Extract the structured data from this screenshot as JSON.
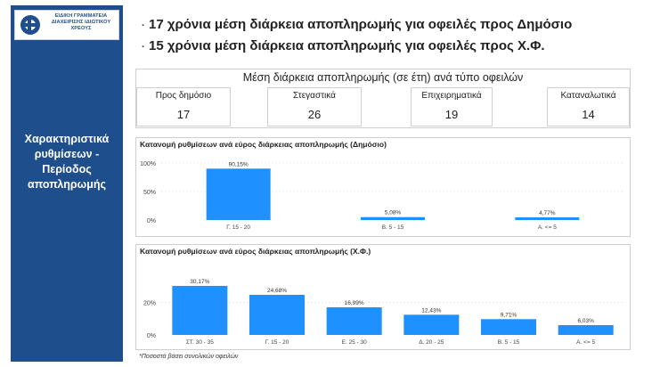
{
  "logo": {
    "text": "ΕΙΔΙΚΗ ΓΡΑΜΜΑΤΕΙΑ ΔΙΑΧΕΙΡΙΣΗΣ ΙΔΙΩΤΙΚΟΥ ΧΡΕΟΥΣ"
  },
  "sidebar": {
    "title": "Χαρακτηριστικά ρυθμίσεων - Περίοδος αποπληρωμής"
  },
  "bullets": [
    "17 χρόνια μέση διάρκεια αποπληρωμής για οφειλές προς Δημόσιο",
    "15 χρόνια μέση διάρκεια αποπληρωμής για οφειλές προς Χ.Φ."
  ],
  "kpi": {
    "title": "Μέση διάρκεια αποπληρωμής (σε έτη) ανά τύπο οφειλών",
    "cards": [
      {
        "label": "Προς δημόσιο",
        "value": "17"
      },
      {
        "label": "Στεγαστικά",
        "value": "26"
      },
      {
        "label": "Επιχειρηματικά",
        "value": "19"
      },
      {
        "label": "Καταναλωτικά",
        "value": "14"
      }
    ]
  },
  "chart_data": [
    {
      "type": "bar",
      "title": "Κατανομή ρυθμίσεων ανά εύρος διάρκειας αποπληρωμής (Δημόσιο)",
      "categories": [
        "Γ. 15 - 20",
        "Β. 5 - 15",
        "Α. <= 5"
      ],
      "values": [
        90.15,
        5.08,
        4.77
      ],
      "data_labels": [
        "90,15%",
        "5,08%",
        "4,77%"
      ],
      "ytick_labels": [
        "100%",
        "50%",
        "0%"
      ],
      "yticks": [
        100,
        50,
        0
      ],
      "ylim": [
        0,
        100
      ],
      "color": "#1e90ff"
    },
    {
      "type": "bar",
      "title": "Κατανομή ρυθμίσεων ανά εύρος διάρκειας αποπληρωμής (Χ.Φ.)",
      "categories": [
        "ΣΤ. 30 - 35",
        "Γ. 15 - 20",
        "Ε. 25 - 30",
        "Δ. 20 - 25",
        "Β. 5 - 15",
        "Α. <= 5"
      ],
      "values": [
        30.17,
        24.68,
        16.99,
        12.43,
        9.71,
        6.03
      ],
      "data_labels": [
        "30,17%",
        "24,68%",
        "16,99%",
        "12,43%",
        "9,71%",
        "6,03%"
      ],
      "ytick_labels": [
        "20%",
        "0%"
      ],
      "yticks": [
        20,
        0
      ],
      "ylim": [
        0,
        40
      ],
      "color": "#1e90ff"
    }
  ],
  "footnote": "*Ποσοστά βάσει συνολικών οφειλών"
}
